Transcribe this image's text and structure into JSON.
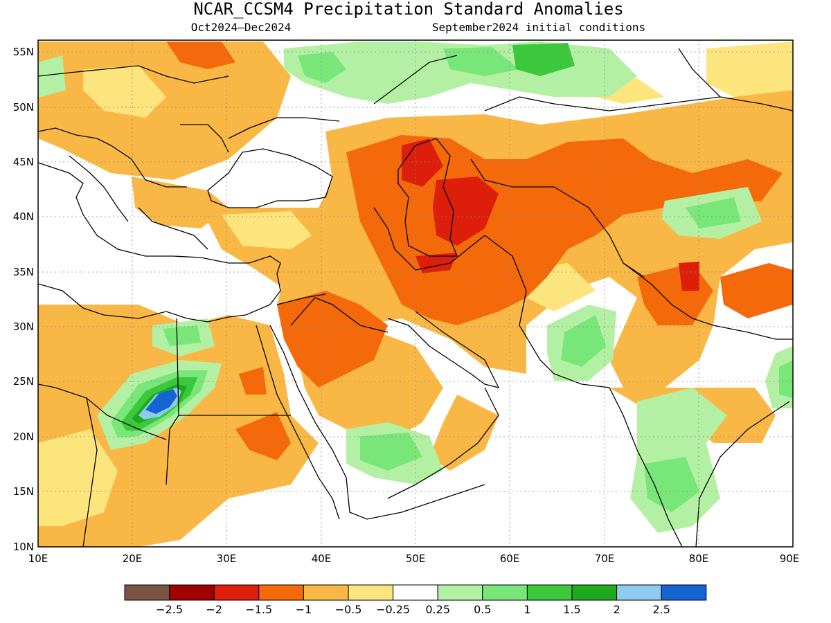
{
  "title": "NCAR_CCSM4 Precipitation Standard Anomalies",
  "subtitle_left": "Oct2024–Dec2024",
  "subtitle_right": "September2024 initial conditions",
  "lat_labels": [
    "55N",
    "50N",
    "45N",
    "40N",
    "35N",
    "30N",
    "25N",
    "20N",
    "15N",
    "10N"
  ],
  "lon_labels": [
    "10E",
    "20E",
    "30E",
    "40E",
    "50E",
    "60E",
    "70E",
    "80E",
    "90E"
  ],
  "legend": {
    "colors": [
      "#7a5545",
      "#a00000",
      "#dc1e0a",
      "#f46a0a",
      "#f9b845",
      "#fde57e",
      "#ffffff",
      "#b4f0a4",
      "#78e678",
      "#3cc83c",
      "#1eaa1e",
      "#8ecbf2",
      "#1464d2"
    ],
    "labels": [
      "−2.5",
      "−2",
      "−1.5",
      "−1",
      "−0.5",
      "−0.25",
      "0.25",
      "0.5",
      "1",
      "1.5",
      "2",
      "2.5"
    ]
  },
  "map": {
    "lat_range": [
      10,
      56
    ],
    "lon_range": [
      10,
      90
    ],
    "anomaly_colors": {
      "dry_light": "#fde57e",
      "dry": "#f9b845",
      "dry_strong": "#f46a0a",
      "dry_very_strong": "#dc1e0a",
      "wet_light": "#b4f0a4",
      "wet": "#78e678",
      "wet_strong": "#3cc83c",
      "wet_very_strong": "#1eaa1e",
      "wet_blue": "#8ecbf2",
      "wet_dark_blue": "#1464d2"
    }
  }
}
